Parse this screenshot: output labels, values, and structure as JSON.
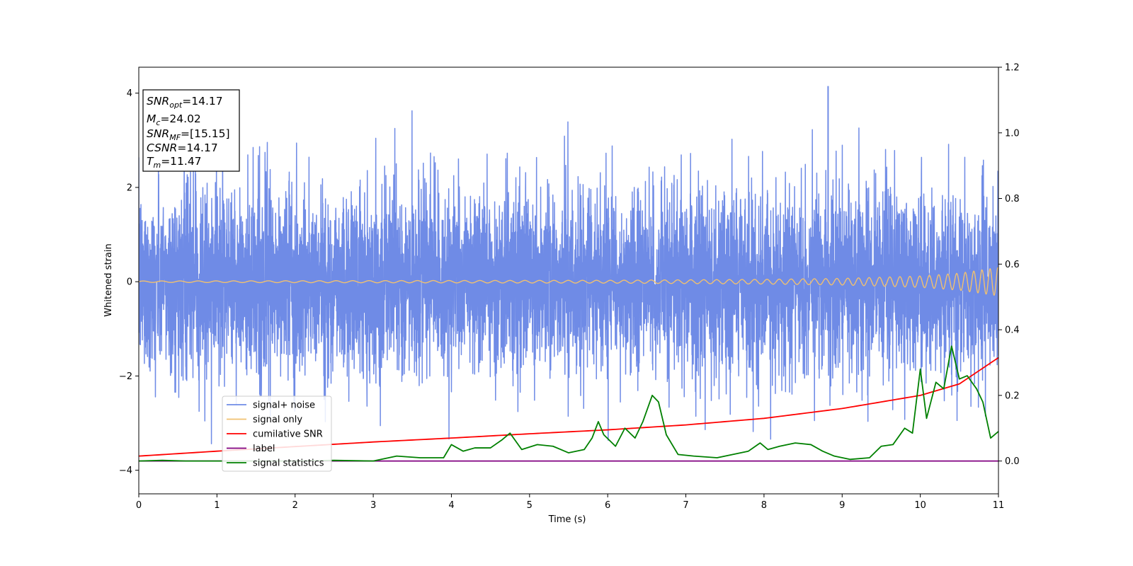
{
  "chart_data": {
    "type": "line",
    "xlabel": "Time (s)",
    "ylabel": "Whitened strain",
    "xlim": [
      0,
      11
    ],
    "ylim_left": [
      -4.5,
      4.55
    ],
    "ylim_right": [
      -0.1,
      1.2
    ],
    "x_ticks": [
      "0",
      "1",
      "2",
      "3",
      "4",
      "5",
      "6",
      "7",
      "8",
      "9",
      "10",
      "11"
    ],
    "y_ticks_left": [
      "4",
      "2",
      "0",
      "−2",
      "−4"
    ],
    "y_ticks_left_values": [
      4,
      2,
      0,
      -2,
      -4
    ],
    "y_ticks_right": [
      "1.2",
      "1.0",
      "0.8",
      "0.6",
      "0.4",
      "0.2",
      "0.0"
    ],
    "y_ticks_right_values": [
      1.2,
      1.0,
      0.8,
      0.6,
      0.4,
      0.2,
      0.0
    ],
    "info_box": {
      "lines": [
        {
          "base": "SNR",
          "sub": "opt",
          "rest": "=14.17"
        },
        {
          "base": "M",
          "sub": "c",
          "rest": "=24.02"
        },
        {
          "base": "SNR",
          "sub": "MF",
          "rest": "=[15.15]"
        },
        {
          "base": "CSNR",
          "sub": "",
          "rest": "=14.17"
        },
        {
          "base": "T",
          "sub": "m",
          "rest": "=11.47"
        }
      ]
    },
    "series": [
      {
        "name": "signal+ noise",
        "color": "#6f8be6",
        "axis": "left",
        "kind": "noise",
        "std": 0.95,
        "max_abs": 4.15,
        "t_range": [
          0,
          11
        ]
      },
      {
        "name": "signal only",
        "color": "#f0c070",
        "axis": "left",
        "kind": "chirp",
        "amplitude_envelope": {
          "t": [
            0,
            2,
            4,
            6,
            8,
            9,
            10,
            10.5,
            11
          ],
          "a": [
            0.015,
            0.02,
            0.025,
            0.03,
            0.05,
            0.07,
            0.12,
            0.18,
            0.3
          ]
        },
        "frequency_envelope": {
          "t": [
            0,
            4,
            8,
            10,
            11
          ],
          "f": [
            4.2,
            5.0,
            6.3,
            8.0,
            10.0
          ]
        }
      },
      {
        "name": "cumilative SNR",
        "color": "#ff0000",
        "axis": "right",
        "x": [
          0,
          1,
          2,
          3,
          4,
          5,
          6,
          7,
          8,
          9,
          9.5,
          10,
          10.5,
          11
        ],
        "y": [
          0.015,
          0.03,
          0.044,
          0.058,
          0.07,
          0.083,
          0.095,
          0.11,
          0.13,
          0.16,
          0.18,
          0.2,
          0.235,
          0.315
        ]
      },
      {
        "name": "label",
        "color": "#800080",
        "axis": "right",
        "x": [
          0,
          11
        ],
        "y": [
          0.0,
          0.0
        ]
      },
      {
        "name": "signal statistics",
        "color": "#008000",
        "axis": "right",
        "x": [
          0,
          0.3,
          0.6,
          1,
          2,
          2.5,
          3,
          3.3,
          3.6,
          3.9,
          4.0,
          4.15,
          4.3,
          4.5,
          4.65,
          4.75,
          4.9,
          5.1,
          5.3,
          5.5,
          5.7,
          5.8,
          5.88,
          5.95,
          6.1,
          6.22,
          6.35,
          6.45,
          6.57,
          6.65,
          6.75,
          6.9,
          7.1,
          7.4,
          7.6,
          7.8,
          7.95,
          8.05,
          8.2,
          8.4,
          8.6,
          8.75,
          8.9,
          9.1,
          9.35,
          9.5,
          9.65,
          9.8,
          9.9,
          10.0,
          10.08,
          10.2,
          10.3,
          10.4,
          10.5,
          10.6,
          10.72,
          10.8,
          10.9,
          11.0
        ],
        "y": [
          0.0,
          0.002,
          0.0,
          0.0,
          0.0,
          0.002,
          0.0,
          0.015,
          0.01,
          0.01,
          0.05,
          0.03,
          0.04,
          0.04,
          0.065,
          0.085,
          0.035,
          0.05,
          0.045,
          0.025,
          0.035,
          0.07,
          0.12,
          0.08,
          0.045,
          0.1,
          0.07,
          0.12,
          0.2,
          0.18,
          0.08,
          0.02,
          0.015,
          0.01,
          0.02,
          0.03,
          0.055,
          0.035,
          0.045,
          0.055,
          0.05,
          0.03,
          0.015,
          0.005,
          0.01,
          0.045,
          0.05,
          0.1,
          0.085,
          0.28,
          0.13,
          0.24,
          0.22,
          0.35,
          0.25,
          0.26,
          0.22,
          0.18,
          0.07,
          0.09
        ]
      }
    ],
    "legend": {
      "placement": "lower left"
    }
  }
}
